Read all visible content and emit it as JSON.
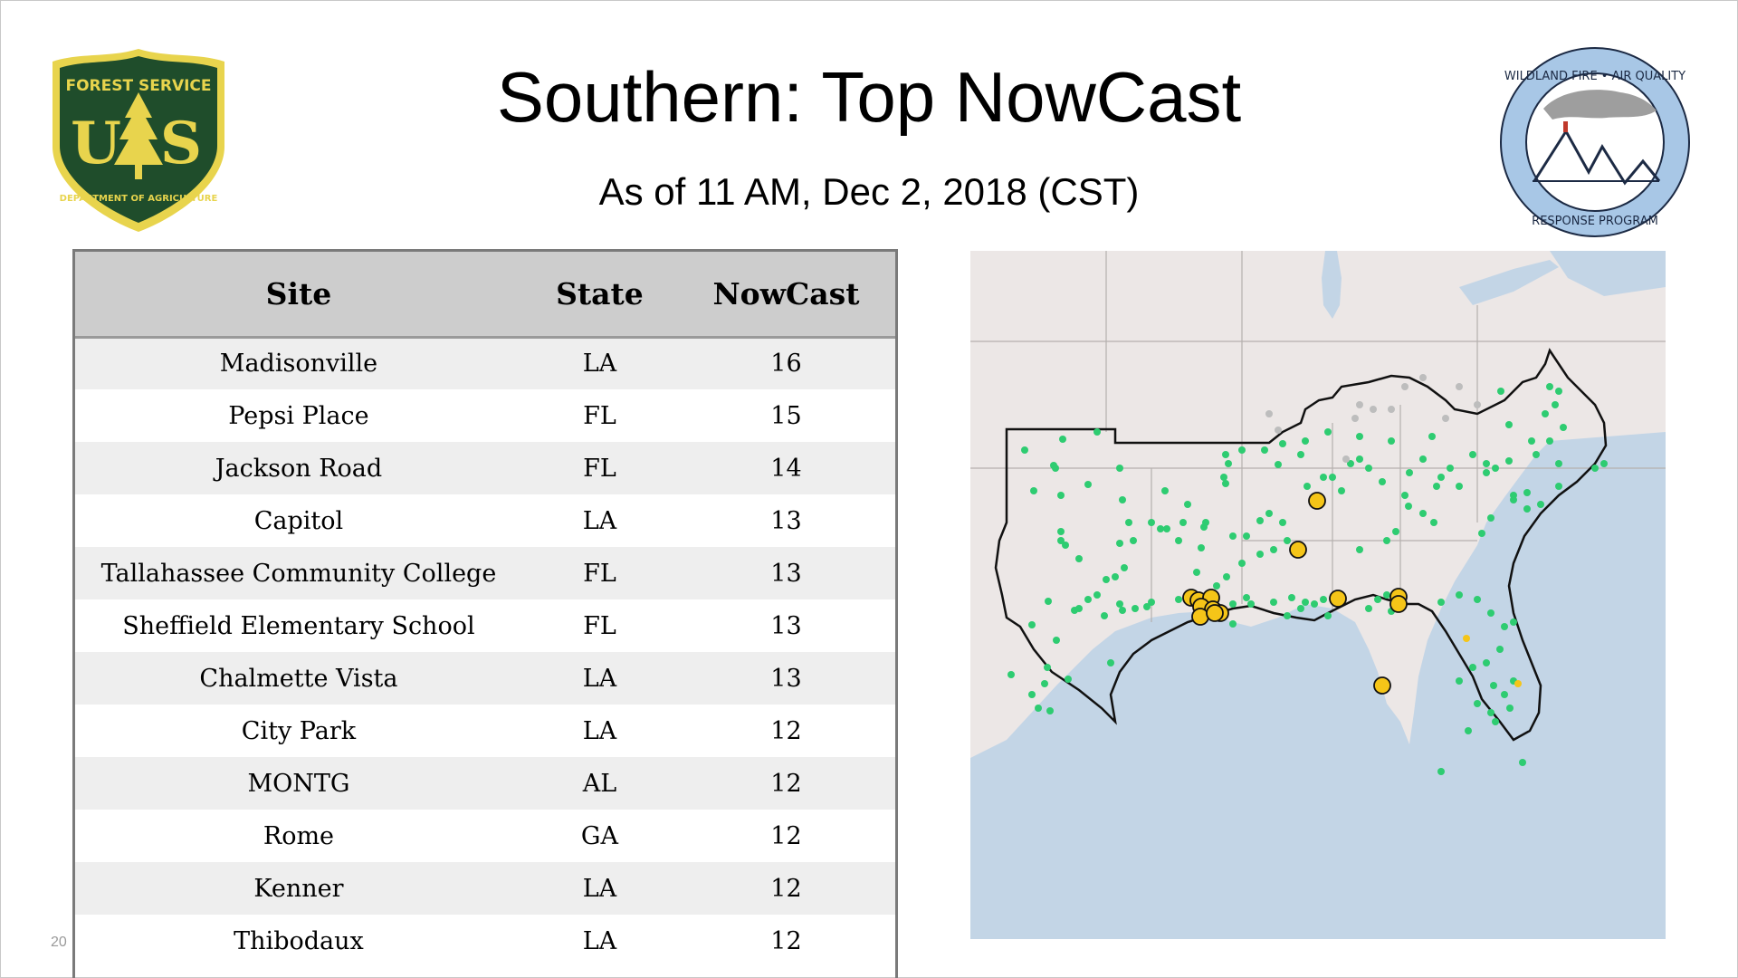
{
  "slide": {
    "title": "Southern: Top NowCast",
    "subtitle": "As of 11 AM, Dec  2, 2018 (CST)",
    "page_number": "20"
  },
  "logos": {
    "left": {
      "name": "usfs-shield-logo",
      "text_top": "FOREST SERVICE",
      "letters": "U S",
      "text_bottom": "DEPARTMENT OF AGRICULTURE",
      "colors": {
        "green": "#1f4d2b",
        "gold": "#e8d44d"
      }
    },
    "right": {
      "name": "wildland-fire-air-quality-logo",
      "text_top": "WILDLAND FIRE • AIR QUALITY",
      "text_bottom": "RESPONSE PROGRAM",
      "colors": {
        "ring": "#a8c7e6",
        "ink": "#1c2a44"
      }
    }
  },
  "table": {
    "headers": [
      "Site",
      "State",
      "NowCast"
    ],
    "rows": [
      [
        "Madisonville",
        "LA",
        "16"
      ],
      [
        "Pepsi Place",
        "FL",
        "15"
      ],
      [
        "Jackson Road",
        "FL",
        "14"
      ],
      [
        "Capitol",
        "LA",
        "13"
      ],
      [
        "Tallahassee Community College",
        "FL",
        "13"
      ],
      [
        "Sheffield Elementary School",
        "FL",
        "13"
      ],
      [
        "Chalmette Vista",
        "LA",
        "13"
      ],
      [
        "City Park",
        "LA",
        "12"
      ],
      [
        "MONTG",
        "AL",
        "12"
      ],
      [
        "Rome",
        "GA",
        "12"
      ],
      [
        "Kenner",
        "LA",
        "12"
      ],
      [
        "Thibodaux",
        "LA",
        "12"
      ]
    ]
  },
  "map": {
    "colors": {
      "land": "#ece7e6",
      "water": "#c3d5e6",
      "good": "#2ecc71",
      "moderate": "#f5c518",
      "no_data": "#bdbdbd",
      "outline": "#111111"
    }
  }
}
